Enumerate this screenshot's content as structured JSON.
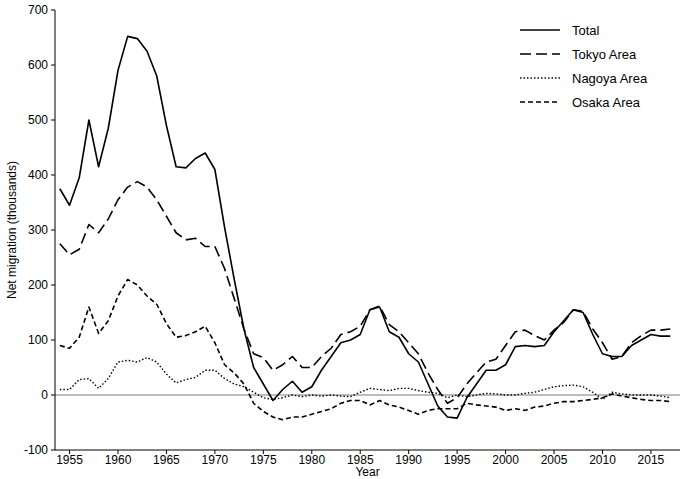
{
  "chart_data": {
    "type": "line",
    "x_label": "Year",
    "y_label": "Net migration (thousands)",
    "x": [
      1954,
      1955,
      1956,
      1957,
      1958,
      1959,
      1960,
      1961,
      1962,
      1963,
      1964,
      1965,
      1966,
      1967,
      1968,
      1969,
      1970,
      1971,
      1972,
      1973,
      1974,
      1975,
      1976,
      1977,
      1978,
      1979,
      1980,
      1981,
      1982,
      1983,
      1984,
      1985,
      1986,
      1987,
      1988,
      1989,
      1990,
      1991,
      1992,
      1993,
      1994,
      1995,
      1996,
      1997,
      1998,
      1999,
      2000,
      2001,
      2002,
      2003,
      2004,
      2005,
      2006,
      2007,
      2008,
      2009,
      2010,
      2011,
      2012,
      2013,
      2014,
      2015,
      2016,
      2017
    ],
    "xlim": [
      1953.5,
      2018
    ],
    "xticks": [
      1955,
      1960,
      1965,
      1970,
      1975,
      1980,
      1985,
      1990,
      1995,
      2000,
      2005,
      2010,
      2015
    ],
    "ylim": [
      -100,
      700
    ],
    "yticks": [
      -100,
      0,
      100,
      200,
      300,
      400,
      500,
      600,
      700
    ],
    "grid": false,
    "legend": "top-right",
    "series": [
      {
        "name": "Total",
        "color": "#000000",
        "line_style": "solid",
        "values": [
          375,
          345,
          395,
          500,
          415,
          485,
          590,
          652,
          648,
          625,
          580,
          490,
          415,
          413,
          430,
          440,
          410,
          305,
          210,
          120,
          50,
          20,
          -10,
          10,
          25,
          5,
          15,
          45,
          70,
          95,
          100,
          110,
          155,
          160,
          115,
          105,
          75,
          60,
          20,
          -20,
          -40,
          -42,
          -5,
          20,
          45,
          45,
          55,
          88,
          90,
          88,
          90,
          115,
          135,
          155,
          150,
          110,
          75,
          70,
          70,
          90,
          100,
          110,
          107,
          107
        ]
      },
      {
        "name": "Tokyo Area",
        "color": "#000000",
        "line_style": "long-dash",
        "values": [
          275,
          255,
          265,
          310,
          295,
          320,
          355,
          378,
          388,
          378,
          355,
          325,
          295,
          282,
          285,
          270,
          270,
          230,
          175,
          120,
          75,
          68,
          45,
          55,
          70,
          50,
          50,
          70,
          85,
          110,
          115,
          125,
          155,
          162,
          128,
          115,
          95,
          75,
          40,
          10,
          -15,
          -5,
          20,
          40,
          60,
          65,
          90,
          115,
          118,
          108,
          100,
          118,
          132,
          155,
          152,
          120,
          95,
          65,
          70,
          95,
          108,
          118,
          118,
          120
        ]
      },
      {
        "name": "Nagoya Area",
        "color": "#000000",
        "line_style": "dotted",
        "values": [
          10,
          10,
          28,
          30,
          12,
          30,
          60,
          63,
          60,
          68,
          60,
          38,
          22,
          28,
          32,
          45,
          45,
          30,
          20,
          15,
          5,
          -5,
          -8,
          -5,
          0,
          -3,
          0,
          -2,
          0,
          -2,
          -3,
          5,
          12,
          10,
          8,
          12,
          12,
          8,
          5,
          3,
          -5,
          0,
          -3,
          0,
          3,
          2,
          0,
          0,
          3,
          5,
          10,
          15,
          17,
          18,
          15,
          5,
          -8,
          5,
          2,
          0,
          0,
          0,
          -2,
          -5
        ]
      },
      {
        "name": "Osaka Area",
        "color": "#000000",
        "line_style": "dashed",
        "values": [
          90,
          85,
          105,
          160,
          112,
          135,
          180,
          210,
          200,
          180,
          165,
          130,
          105,
          108,
          115,
          125,
          95,
          55,
          40,
          20,
          -15,
          -30,
          -40,
          -45,
          -40,
          -40,
          -35,
          -30,
          -25,
          -15,
          -10,
          -10,
          -18,
          -10,
          -18,
          -22,
          -28,
          -35,
          -28,
          -25,
          -25,
          -25,
          -15,
          -18,
          -20,
          -22,
          -28,
          -25,
          -28,
          -22,
          -20,
          -15,
          -12,
          -12,
          -10,
          -8,
          -5,
          2,
          -2,
          -5,
          -8,
          -10,
          -10,
          -12
        ]
      }
    ]
  }
}
